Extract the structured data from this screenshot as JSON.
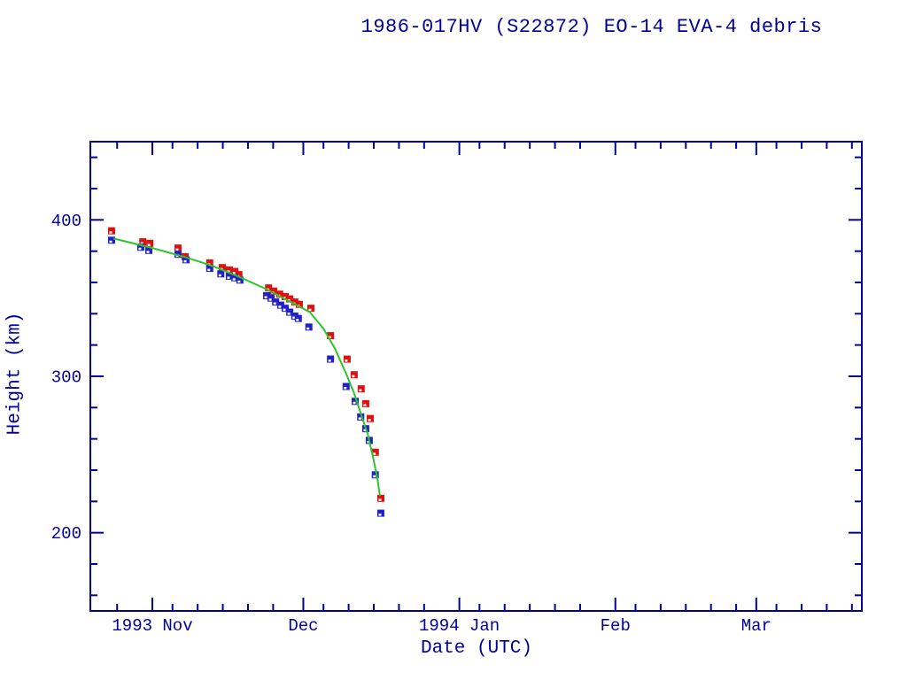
{
  "title": "1986-017HV (S22872) EO-14 EVA-4 debris",
  "colors": {
    "axis_and_text": "#000099",
    "red_marker": "#e01010",
    "blue_marker": "#2020cc",
    "green_line": "#2dc42d",
    "background": "#ffffff"
  },
  "chart_data": {
    "type": "scatter",
    "title": "1986-017HV (S22872) EO-14 EVA-4 debris",
    "xlabel": "Date (UTC)",
    "ylabel": "Height (km)",
    "grid": false,
    "legend": "none",
    "x_axis": {
      "unit": "days since 1993-11-01 00:00 UTC",
      "domain_days": [
        -12.32,
        140.97
      ],
      "major_ticks": [
        {
          "day": 0,
          "label": "1993 Nov"
        },
        {
          "day": 30,
          "label": "Dec"
        },
        {
          "day": 61,
          "label": "1994 Jan"
        },
        {
          "day": 92,
          "label": "Feb"
        },
        {
          "day": 120,
          "label": "Mar"
        }
      ],
      "minor_tick_days": [
        -7,
        4,
        9,
        14,
        19,
        24,
        34,
        39,
        44,
        49,
        54,
        65,
        70,
        75,
        80,
        85,
        96,
        101,
        106,
        111,
        116,
        124,
        129,
        134,
        139
      ]
    },
    "y_axis": {
      "unit": "km",
      "ylim": [
        150,
        450
      ],
      "major_ticks": [
        200,
        300,
        400
      ],
      "minor_ticks": [
        160,
        180,
        220,
        240,
        260,
        280,
        320,
        340,
        360,
        380,
        420,
        440
      ]
    },
    "series": [
      {
        "name": "red-squares-upper-height",
        "marker": "square",
        "color": "#e01010",
        "points": [
          [
            -8.1,
            393
          ],
          [
            -1.9,
            386
          ],
          [
            -0.5,
            385
          ],
          [
            5.1,
            382
          ],
          [
            6.5,
            376.5
          ],
          [
            11.4,
            372.5
          ],
          [
            13.9,
            369.5
          ],
          [
            15.3,
            368
          ],
          [
            16.4,
            367
          ],
          [
            17.2,
            365
          ],
          [
            23.1,
            356.5
          ],
          [
            24.1,
            354.5
          ],
          [
            25.3,
            352.5
          ],
          [
            26.4,
            351
          ],
          [
            27.3,
            349.5
          ],
          [
            28.3,
            347.5
          ],
          [
            29.2,
            346
          ],
          [
            31.5,
            343.5
          ],
          [
            35.4,
            326
          ],
          [
            38.7,
            311
          ],
          [
            40.1,
            301
          ],
          [
            41.5,
            292
          ],
          [
            42.4,
            282.5
          ],
          [
            43.3,
            273
          ],
          [
            44.3,
            251.5
          ],
          [
            45.4,
            222
          ]
        ]
      },
      {
        "name": "blue-squares-lower-height",
        "marker": "square",
        "color": "#2020cc",
        "points": [
          [
            -8.1,
            387
          ],
          [
            -2.3,
            382.5
          ],
          [
            -0.7,
            380.5
          ],
          [
            5.1,
            378
          ],
          [
            6.7,
            374.5
          ],
          [
            11.4,
            369
          ],
          [
            13.6,
            365.5
          ],
          [
            15.3,
            364
          ],
          [
            16.4,
            363
          ],
          [
            17.4,
            361.5
          ],
          [
            22.7,
            351.5
          ],
          [
            23.6,
            350
          ],
          [
            24.5,
            347.5
          ],
          [
            25.5,
            345.5
          ],
          [
            26.4,
            343.5
          ],
          [
            27.3,
            341
          ],
          [
            28.3,
            338.5
          ],
          [
            29.0,
            337
          ],
          [
            31.1,
            331.5
          ],
          [
            35.4,
            311
          ],
          [
            38.5,
            293.5
          ],
          [
            40.3,
            284
          ],
          [
            41.4,
            274
          ],
          [
            42.4,
            266.5
          ],
          [
            43.1,
            259
          ],
          [
            44.3,
            237
          ],
          [
            45.4,
            212.5
          ]
        ]
      },
      {
        "name": "green-fit-line",
        "marker": "none",
        "type": "line",
        "color": "#2dc42d",
        "points": [
          [
            -7.6,
            388
          ],
          [
            0,
            382
          ],
          [
            6.7,
            376
          ],
          [
            12.0,
            370.5
          ],
          [
            17.3,
            363.5
          ],
          [
            22.5,
            356
          ],
          [
            27.8,
            347
          ],
          [
            31.3,
            341
          ],
          [
            34.0,
            330.5
          ],
          [
            36.3,
            317.5
          ],
          [
            38.4,
            302.5
          ],
          [
            40.1,
            289
          ],
          [
            41.5,
            275.5
          ],
          [
            42.8,
            263
          ],
          [
            43.8,
            249
          ],
          [
            44.7,
            235
          ],
          [
            45.2,
            224
          ]
        ]
      }
    ]
  }
}
